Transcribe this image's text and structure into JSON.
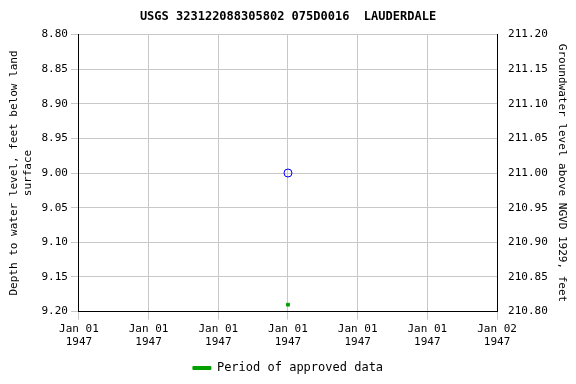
{
  "chart_data": {
    "type": "scatter",
    "title": "USGS 323122088305802 075D0016  LAUDERDALE",
    "y_label": [
      "Depth to water level, feet below land",
      "surface"
    ],
    "y2_label": "Groundwater level above NGVD 1929, feet",
    "categories": [
      [
        "Jan 01",
        "1947"
      ],
      [
        "Jan 01",
        "1947"
      ],
      [
        "Jan 01",
        "1947"
      ],
      [
        "Jan 01",
        "1947"
      ],
      [
        "Jan 01",
        "1947"
      ],
      [
        "Jan 01",
        "1947"
      ],
      [
        "Jan 02",
        "1947"
      ]
    ],
    "series": [
      {
        "color": "#0000ff",
        "marker": "hollow_circle",
        "values": [
          null,
          null,
          null,
          9.0,
          null,
          null,
          null
        ]
      },
      {
        "name": "Period of approved data",
        "color": "#00a000",
        "marker": "square",
        "values": [
          null,
          null,
          null,
          9.19,
          null,
          null,
          null
        ]
      }
    ],
    "ylim": [
      9.2,
      8.8
    ],
    "yticks": [
      {
        "value": 8.8,
        "label": "8.80"
      },
      {
        "value": 8.85,
        "label": "8.85"
      },
      {
        "value": 8.9,
        "label": "8.90"
      },
      {
        "value": 8.95,
        "label": "8.95"
      },
      {
        "value": 9.0,
        "label": "9.00"
      },
      {
        "value": 9.05,
        "label": "9.05"
      },
      {
        "value": 9.1,
        "label": "9.10"
      },
      {
        "value": 9.15,
        "label": "9.15"
      },
      {
        "value": 9.2,
        "label": "9.20"
      }
    ],
    "y2lim": [
      210.8,
      211.2
    ],
    "y2ticks": [
      {
        "value": 210.8,
        "label": "210.80"
      },
      {
        "value": 210.85,
        "label": "210.85"
      },
      {
        "value": 210.9,
        "label": "210.90"
      },
      {
        "value": 210.95,
        "label": "210.95"
      },
      {
        "value": 211.0,
        "label": "211.00"
      },
      {
        "value": 211.05,
        "label": "211.05"
      },
      {
        "value": 211.1,
        "label": "211.10"
      },
      {
        "value": 211.15,
        "label": "211.15"
      },
      {
        "value": 211.2,
        "label": "211.20"
      }
    ],
    "grid": true,
    "legend": "bottom"
  }
}
